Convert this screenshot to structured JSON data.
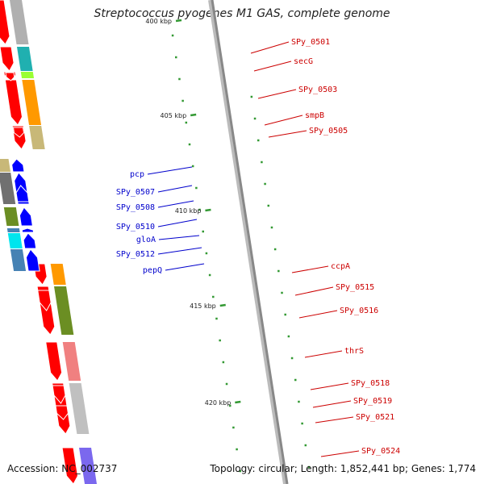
{
  "title": "Streptococcus pyogenes M1 GAS, complete genome",
  "footer": {
    "accession": "Accession: NC_002737",
    "topology": "Topology: circular; Length: 1,852,441 bp; Genes: 1,774"
  },
  "ticks": [
    {
      "label": "400 kbp",
      "pos_kbp": 400
    },
    {
      "label": "405 kbp",
      "pos_kbp": 405
    },
    {
      "label": "410 kbp",
      "pos_kbp": 410
    },
    {
      "label": "415 kbp",
      "pos_kbp": 415
    },
    {
      "label": "420 kbp",
      "pos_kbp": 420
    }
  ],
  "colors": {
    "forward_label": "#cc0000",
    "reverse_label": "#0000cc",
    "forward_arrow": "#ff0000",
    "reverse_arrow": "#0000ff",
    "backbone": "#888888",
    "tick": "#339933"
  },
  "genes": [
    {
      "name": "SPy_0501",
      "strand": "forward"
    },
    {
      "name": "secG",
      "strand": "forward"
    },
    {
      "name": "SPy_0503",
      "strand": "forward"
    },
    {
      "name": "smpB",
      "strand": "forward"
    },
    {
      "name": "SPy_0505",
      "strand": "forward"
    },
    {
      "name": "pcp",
      "strand": "reverse"
    },
    {
      "name": "SPy_0507",
      "strand": "reverse"
    },
    {
      "name": "SPy_0508",
      "strand": "reverse"
    },
    {
      "name": "SPy_0510",
      "strand": "reverse"
    },
    {
      "name": "gloA",
      "strand": "reverse"
    },
    {
      "name": "SPy_0512",
      "strand": "reverse"
    },
    {
      "name": "pepQ",
      "strand": "reverse"
    },
    {
      "name": "ccpA",
      "strand": "forward"
    },
    {
      "name": "SPy_0515",
      "strand": "forward"
    },
    {
      "name": "SPy_0516",
      "strand": "forward"
    },
    {
      "name": "thrS",
      "strand": "forward"
    },
    {
      "name": "SPy_0518",
      "strand": "forward"
    },
    {
      "name": "SPy_0519",
      "strand": "forward"
    },
    {
      "name": "SPy_0521",
      "strand": "forward"
    },
    {
      "name": "SPy_0524",
      "strand": "forward"
    }
  ]
}
